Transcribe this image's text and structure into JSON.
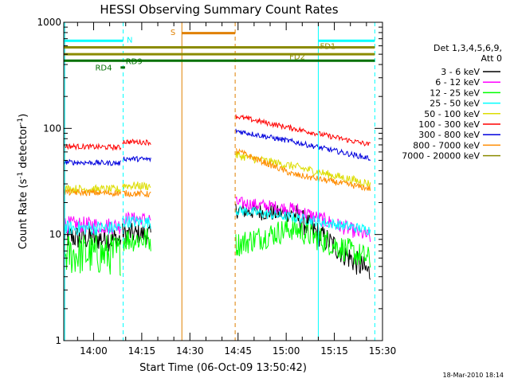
{
  "chart_data": {
    "type": "line",
    "title": "HESSI Observing Summary Count Rates",
    "xlabel": "Start Time (06-Oct-09 13:50:42)",
    "ylabel_main": "Count Rate (s",
    "ylabel_sup1": "-1",
    "ylabel_mid": " detector",
    "ylabel_sup2": "-1",
    "ylabel_end": ")",
    "yscale": "log",
    "ylim": [
      1,
      1000
    ],
    "xlim_minutes": [
      830.7,
      930.0
    ],
    "x_ticks": [
      {
        "t": 840,
        "label": "14:00"
      },
      {
        "t": 855,
        "label": "14:15"
      },
      {
        "t": 870,
        "label": "14:30"
      },
      {
        "t": 885,
        "label": "14:45"
      },
      {
        "t": 900,
        "label": "15:00"
      },
      {
        "t": 915,
        "label": "15:15"
      },
      {
        "t": 930,
        "label": "15:30"
      }
    ],
    "y_ticks": [
      {
        "v": 1,
        "label": "1"
      },
      {
        "v": 10,
        "label": "10"
      },
      {
        "v": 100,
        "label": "100"
      },
      {
        "v": 1000,
        "label": "1000"
      }
    ],
    "legend_title_1": "Det 1,3,4,5,6,9,",
    "legend_title_2": "Att 0",
    "legend_placement": "right",
    "series": [
      {
        "name": "3 - 6 keV",
        "color": "#000000",
        "segments": [
          {
            "t0": 830.7,
            "t1": 848.5,
            "v0": 9.5,
            "v1": 9.0,
            "noise": 0.12
          },
          {
            "t0": 849.0,
            "t1": 857.8,
            "v0": 10.3,
            "v1": 10.0,
            "noise": 0.1
          },
          {
            "t0": 884.3,
            "t1": 902.0,
            "v0": 17.0,
            "v1": 15.5,
            "noise": 0.08
          },
          {
            "t0": 902.0,
            "t1": 926.2,
            "v0": 15.5,
            "v1": 4.3,
            "noise": 0.12
          }
        ]
      },
      {
        "name": "6 - 12 keV",
        "color": "#ff00ff",
        "segments": [
          {
            "t0": 830.7,
            "t1": 848.5,
            "v0": 12.5,
            "v1": 12.0,
            "noise": 0.08
          },
          {
            "t0": 849.0,
            "t1": 857.8,
            "v0": 14.3,
            "v1": 14.0,
            "noise": 0.06
          },
          {
            "t0": 884.3,
            "t1": 902.0,
            "v0": 20.0,
            "v1": 17.5,
            "noise": 0.06
          },
          {
            "t0": 902.0,
            "t1": 926.2,
            "v0": 17.5,
            "v1": 9.5,
            "noise": 0.07
          }
        ]
      },
      {
        "name": "12 - 25 keV",
        "color": "#00ff00",
        "segments": [
          {
            "t0": 830.7,
            "t1": 848.5,
            "v0": 6.5,
            "v1": 6.5,
            "noise": 0.2
          },
          {
            "t0": 849.0,
            "t1": 857.8,
            "v0": 9.0,
            "v1": 9.0,
            "noise": 0.12
          },
          {
            "t0": 884.3,
            "t1": 902.0,
            "v0": 8.0,
            "v1": 11.5,
            "noise": 0.12
          },
          {
            "t0": 902.0,
            "t1": 926.2,
            "v0": 11.5,
            "v1": 5.8,
            "noise": 0.12
          }
        ]
      },
      {
        "name": "25 - 50 keV",
        "color": "#00ffff",
        "segments": [
          {
            "t0": 830.7,
            "t1": 848.5,
            "v0": 11.5,
            "v1": 11.5,
            "noise": 0.07
          },
          {
            "t0": 849.0,
            "t1": 857.8,
            "v0": 13.3,
            "v1": 13.0,
            "noise": 0.06
          },
          {
            "t0": 884.3,
            "t1": 902.0,
            "v0": 17.0,
            "v1": 14.5,
            "noise": 0.05
          },
          {
            "t0": 902.0,
            "t1": 926.2,
            "v0": 14.5,
            "v1": 11.0,
            "noise": 0.05
          }
        ]
      },
      {
        "name": "50 - 100 keV",
        "color": "#dddd00",
        "segments": [
          {
            "t0": 830.7,
            "t1": 848.5,
            "v0": 27.0,
            "v1": 26.5,
            "noise": 0.04
          },
          {
            "t0": 849.0,
            "t1": 857.8,
            "v0": 29.0,
            "v1": 28.5,
            "noise": 0.04
          },
          {
            "t0": 884.3,
            "t1": 902.0,
            "v0": 56.0,
            "v1": 44.0,
            "noise": 0.04
          },
          {
            "t0": 902.0,
            "t1": 926.2,
            "v0": 44.0,
            "v1": 30.0,
            "noise": 0.04
          }
        ]
      },
      {
        "name": "100 - 300 keV",
        "color": "#ff0000",
        "segments": [
          {
            "t0": 830.7,
            "t1": 848.5,
            "v0": 68.0,
            "v1": 66.0,
            "noise": 0.025
          },
          {
            "t0": 849.0,
            "t1": 857.8,
            "v0": 75.0,
            "v1": 74.0,
            "noise": 0.025
          },
          {
            "t0": 884.3,
            "t1": 902.0,
            "v0": 130.0,
            "v1": 100.0,
            "noise": 0.025
          },
          {
            "t0": 902.0,
            "t1": 926.2,
            "v0": 100.0,
            "v1": 70.0,
            "noise": 0.025
          }
        ]
      },
      {
        "name": "300 - 800 keV",
        "color": "#0000dd",
        "segments": [
          {
            "t0": 830.7,
            "t1": 848.5,
            "v0": 48.0,
            "v1": 47.0,
            "noise": 0.025
          },
          {
            "t0": 849.0,
            "t1": 857.8,
            "v0": 52.0,
            "v1": 51.0,
            "noise": 0.025
          },
          {
            "t0": 884.3,
            "t1": 902.0,
            "v0": 95.0,
            "v1": 75.0,
            "noise": 0.025
          },
          {
            "t0": 902.0,
            "t1": 926.2,
            "v0": 75.0,
            "v1": 52.0,
            "noise": 0.025
          }
        ]
      },
      {
        "name": "800 - 7000 keV",
        "color": "#ff8c00",
        "segments": [
          {
            "t0": 830.7,
            "t1": 848.5,
            "v0": 25.0,
            "v1": 24.5,
            "noise": 0.03
          },
          {
            "t0": 849.0,
            "t1": 857.8,
            "v0": 24.5,
            "v1": 24.0,
            "noise": 0.03
          },
          {
            "t0": 884.3,
            "t1": 902.0,
            "v0": 62.0,
            "v1": 37.0,
            "noise": 0.03
          },
          {
            "t0": 902.0,
            "t1": 926.2,
            "v0": 37.0,
            "v1": 27.0,
            "noise": 0.03
          }
        ]
      },
      {
        "name": "7000 - 20000 keV",
        "color": "#8b8b00",
        "segments": []
      }
    ],
    "vlines": [
      {
        "t": 831.0,
        "color": "#00ffff",
        "dashed": false
      },
      {
        "t": 849.2,
        "color": "#00ffff",
        "dashed": true
      },
      {
        "t": 867.5,
        "color": "#e08000",
        "dashed": false
      },
      {
        "t": 884.1,
        "color": "#e08000",
        "dashed": true
      },
      {
        "t": 910.0,
        "color": "#00ffff",
        "dashed": false
      },
      {
        "t": 927.6,
        "color": "#00ffff",
        "dashed": true
      }
    ],
    "flags": [
      {
        "label": "N",
        "color": "#00ffff",
        "t0": 830.7,
        "t1": 849.2,
        "v": 670,
        "label_t": 850.3,
        "label_v": 680,
        "label_anchor": "start"
      },
      {
        "label": "N",
        "color": "#00ffff",
        "t0": 910.0,
        "t1": 927.6,
        "v": 670,
        "label_t": null,
        "label_v": null,
        "label_anchor": "start"
      },
      {
        "label": "S",
        "color": "#e08000",
        "t0": 867.5,
        "t1": 884.1,
        "v": 790,
        "label_t": 865.5,
        "label_v": 800,
        "label_anchor": "end"
      },
      {
        "label": "FD1",
        "color": "#8b8b00",
        "t0": 830.7,
        "t1": 927.6,
        "v": 580,
        "label_t": 910.5,
        "label_v": 590,
        "label_anchor": "start"
      },
      {
        "label": "FD2",
        "color": "#8b8b00",
        "t0": 830.7,
        "t1": 927.6,
        "v": 500,
        "label_t": 901.0,
        "label_v": 470,
        "label_anchor": "start"
      },
      {
        "label": "RD9",
        "color": "#007000",
        "t0": 830.7,
        "t1": 927.6,
        "v": 435,
        "label_t": 850.0,
        "label_v": 425,
        "label_anchor": "start"
      },
      {
        "label": "RD4",
        "color": "#007000",
        "t0": 848.4,
        "t1": 849.8,
        "v": 375,
        "label_t": 840.5,
        "label_v": 370,
        "label_anchor": "start"
      }
    ]
  },
  "footer_timestamp": "18-Mar-2010 18:14"
}
